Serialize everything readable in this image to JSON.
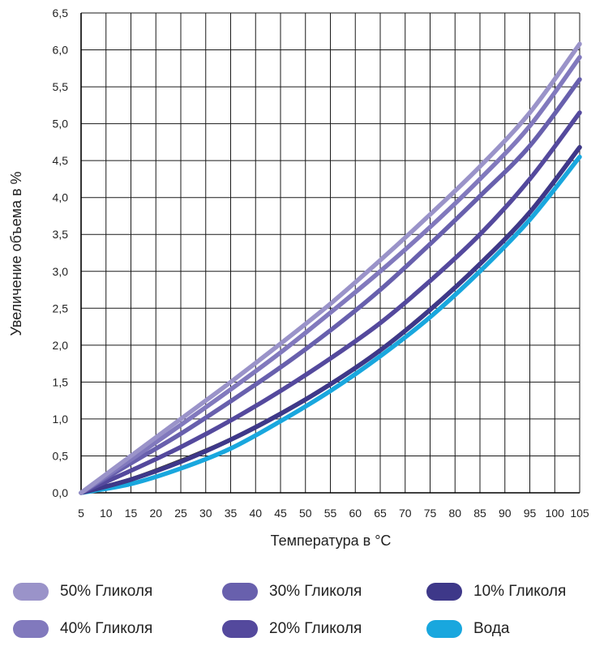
{
  "chart_data": {
    "type": "line",
    "title": "",
    "xlabel": "Температура в °C",
    "ylabel": "Увеличение объема в %",
    "x_ticks": [
      "5",
      "10",
      "15",
      "20",
      "25",
      "30",
      "35",
      "40",
      "45",
      "50",
      "55",
      "60",
      "65",
      "70",
      "75",
      "80",
      "85",
      "90",
      "95",
      "100",
      "105"
    ],
    "y_ticks": [
      "0,0",
      "0,5",
      "1,0",
      "1,5",
      "2,0",
      "2,5",
      "3,0",
      "3,5",
      "4,0",
      "4,5",
      "5,0",
      "5,5",
      "6,0",
      "6,5"
    ],
    "xlim": [
      5,
      105
    ],
    "ylim": [
      0,
      6.5
    ],
    "grid": true,
    "legend_position": "bottom",
    "series": [
      {
        "name": "50% Гликоля",
        "color": "#9a93c9",
        "x": [
          5,
          15,
          25,
          35,
          45,
          55,
          65,
          75,
          85,
          95,
          105
        ],
        "y": [
          0,
          0.5,
          1.0,
          1.5,
          2.02,
          2.56,
          3.15,
          3.77,
          4.42,
          5.15,
          6.08
        ]
      },
      {
        "name": "40% Гликоля",
        "color": "#8179bd",
        "x": [
          5,
          15,
          25,
          35,
          45,
          55,
          65,
          75,
          85,
          95,
          105
        ],
        "y": [
          0,
          0.45,
          0.92,
          1.4,
          1.9,
          2.44,
          3.0,
          3.6,
          4.25,
          4.97,
          5.9
        ]
      },
      {
        "name": "30% Гликоля",
        "color": "#6860ad",
        "x": [
          5,
          15,
          25,
          35,
          45,
          55,
          65,
          75,
          85,
          95,
          105
        ],
        "y": [
          0,
          0.4,
          0.8,
          1.24,
          1.7,
          2.2,
          2.75,
          3.37,
          4.02,
          4.7,
          5.6
        ]
      },
      {
        "name": "20% Гликоля",
        "color": "#54499d",
        "x": [
          5,
          15,
          25,
          35,
          45,
          55,
          65,
          75,
          85,
          95,
          105
        ],
        "y": [
          0,
          0.3,
          0.62,
          0.98,
          1.38,
          1.82,
          2.3,
          2.87,
          3.5,
          4.25,
          5.15
        ]
      },
      {
        "name": "10% Гликоля",
        "color": "#3e3889",
        "x": [
          5,
          15,
          25,
          35,
          45,
          55,
          65,
          75,
          85,
          95,
          105
        ],
        "y": [
          0,
          0.18,
          0.42,
          0.72,
          1.07,
          1.47,
          1.93,
          2.48,
          3.1,
          3.8,
          4.68
        ]
      },
      {
        "name": "Вода",
        "color": "#19a7de",
        "x": [
          5,
          15,
          25,
          35,
          45,
          55,
          65,
          75,
          85,
          95,
          105
        ],
        "y": [
          0,
          0.12,
          0.33,
          0.6,
          0.97,
          1.38,
          1.85,
          2.38,
          3.0,
          3.7,
          4.55
        ]
      },
      {
        "name": "",
        "color": "#3a3a3a",
        "x": [
          5,
          15,
          25,
          35,
          45,
          55,
          65,
          75,
          85,
          95,
          105
        ],
        "y": [
          0,
          0.18,
          0.43,
          0.72,
          1.07,
          1.47,
          1.93,
          2.48,
          3.1,
          3.8,
          4.68
        ]
      }
    ]
  },
  "legend": [
    {
      "label": "50% Гликоля",
      "color": "#9a93c9"
    },
    {
      "label": "30% Гликоля",
      "color": "#6860ad"
    },
    {
      "label": "10% Гликоля",
      "color": "#3e3889"
    },
    {
      "label": "40% Гликоля",
      "color": "#8179bd"
    },
    {
      "label": "20% Гликоля",
      "color": "#54499d"
    },
    {
      "label": "Вода",
      "color": "#19a7de"
    }
  ]
}
